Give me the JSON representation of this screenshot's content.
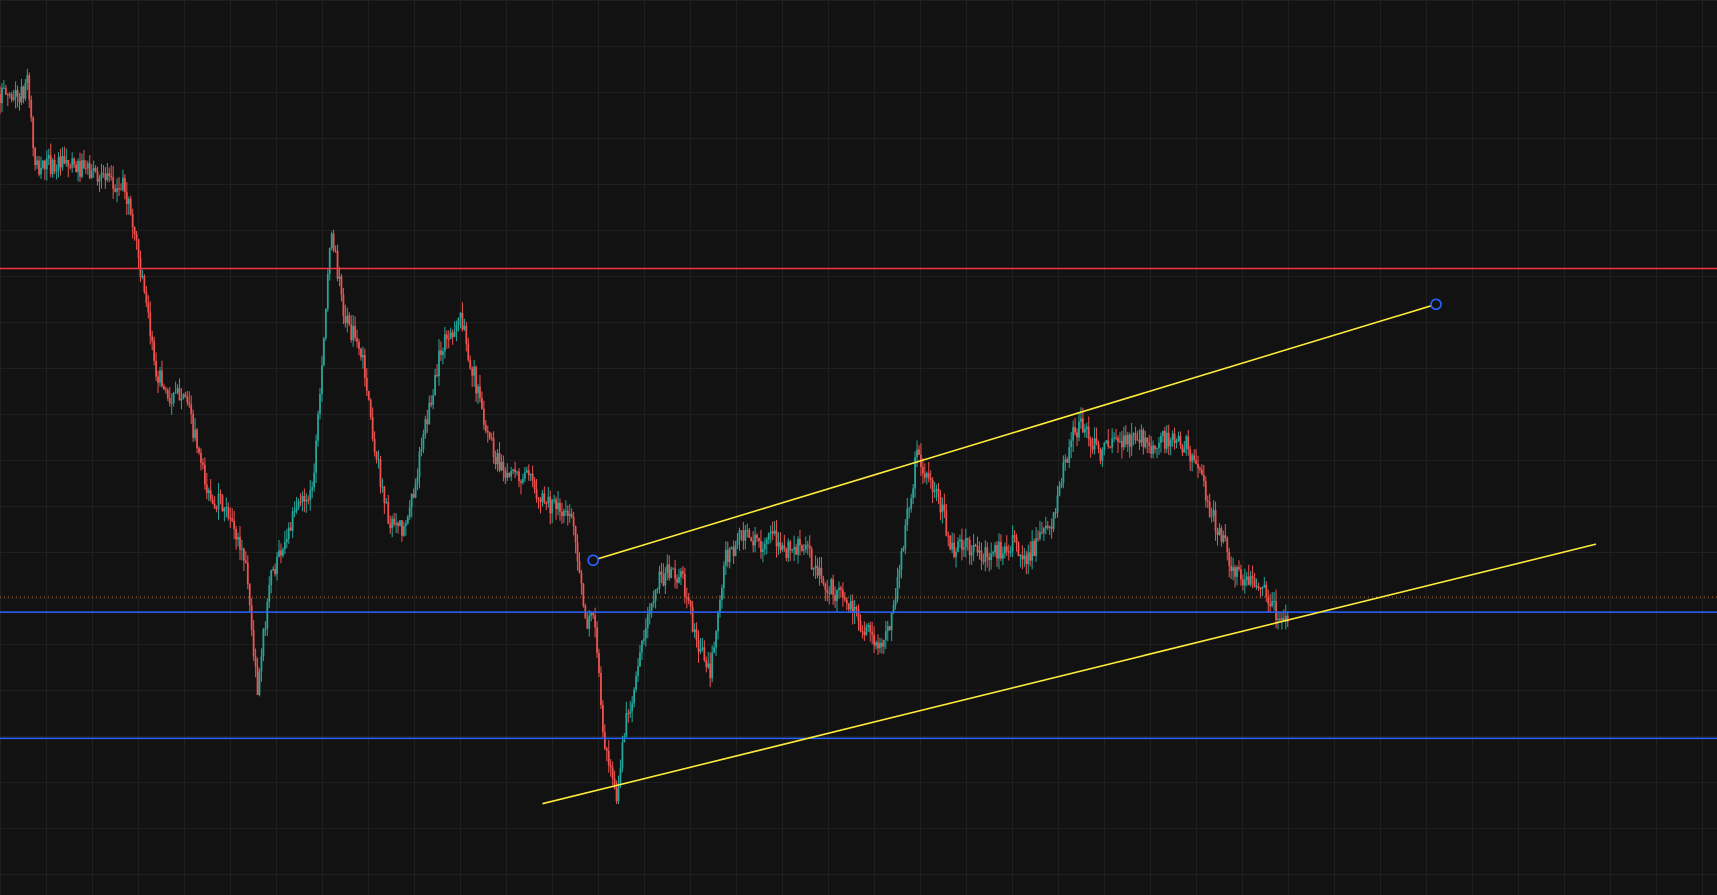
{
  "colors": {
    "background": "#121212",
    "grid": "#1f1f1f",
    "bull": "#26a69a",
    "bear": "#ef5350",
    "resistance": "#f23645",
    "support": "#2962ff",
    "trendline": "#ffeb3b",
    "current_price": "#b2703a",
    "handle": "#2962ff"
  },
  "chart_data": {
    "type": "candlestick",
    "grid": true,
    "axes_visible": false,
    "ylim": [
      0,
      100
    ],
    "xlim": [
      0,
      440
    ],
    "price_path": [
      [
        0,
        89.5
      ],
      [
        6,
        89.3
      ],
      [
        7,
        91.8
      ],
      [
        9,
        81
      ],
      [
        12,
        81.7
      ],
      [
        16,
        81.5
      ],
      [
        22,
        81
      ],
      [
        26,
        80.5
      ],
      [
        29,
        79
      ],
      [
        32,
        79.1
      ],
      [
        35,
        73
      ],
      [
        37,
        66.7
      ],
      [
        40,
        58.7
      ],
      [
        44,
        55
      ],
      [
        47,
        56.7
      ],
      [
        50,
        51
      ],
      [
        53,
        45
      ],
      [
        57,
        43.5
      ],
      [
        60,
        40.8
      ],
      [
        63,
        37.3
      ],
      [
        66,
        22.3
      ],
      [
        69,
        35
      ],
      [
        72,
        38.7
      ],
      [
        77,
        44
      ],
      [
        80,
        45.3
      ],
      [
        85,
        74.3
      ],
      [
        88,
        65
      ],
      [
        93,
        60
      ],
      [
        96,
        50
      ],
      [
        100,
        41
      ],
      [
        104,
        40.8
      ],
      [
        109,
        52.1
      ],
      [
        113,
        61.1
      ],
      [
        118,
        64.7
      ],
      [
        123,
        55
      ],
      [
        127,
        49
      ],
      [
        131,
        46.7
      ],
      [
        135,
        46.5
      ],
      [
        139,
        44.6
      ],
      [
        143,
        42.8
      ],
      [
        147,
        42
      ],
      [
        150,
        30
      ],
      [
        152,
        32
      ],
      [
        155,
        16
      ],
      [
        158,
        10.4
      ],
      [
        160,
        18.7
      ],
      [
        163,
        24.4
      ],
      [
        168,
        35
      ],
      [
        172,
        36.2
      ],
      [
        175,
        35.1
      ],
      [
        178,
        29.2
      ],
      [
        182,
        24.5
      ],
      [
        186,
        37.6
      ],
      [
        190,
        40.1
      ],
      [
        194,
        39.3
      ],
      [
        198,
        39.8
      ],
      [
        202,
        38.5
      ],
      [
        206,
        39.1
      ],
      [
        209,
        36.2
      ],
      [
        212,
        34.5
      ],
      [
        216,
        33.3
      ],
      [
        219,
        31.2
      ],
      [
        223,
        29.3
      ],
      [
        226,
        27.1
      ],
      [
        229,
        32.4
      ],
      [
        232,
        41.1
      ],
      [
        235,
        49.2
      ],
      [
        238,
        46
      ],
      [
        241,
        43.5
      ],
      [
        244,
        38.7
      ],
      [
        248,
        39
      ],
      [
        252,
        37.8
      ],
      [
        256,
        38.5
      ],
      [
        259,
        39.5
      ],
      [
        262,
        37.6
      ],
      [
        266,
        39.2
      ],
      [
        270,
        42
      ],
      [
        272,
        46.5
      ],
      [
        275,
        51.2
      ],
      [
        277,
        52.7
      ],
      [
        279,
        51.3
      ],
      [
        282,
        49.5
      ],
      [
        286,
        50.5
      ],
      [
        290,
        50.8
      ],
      [
        294,
        51.2
      ],
      [
        296,
        49.5
      ],
      [
        298,
        50.8
      ],
      [
        302,
        50.4
      ],
      [
        304,
        50.3
      ],
      [
        306,
        48.7
      ],
      [
        308,
        45.9
      ],
      [
        311,
        42.1
      ],
      [
        314,
        39
      ],
      [
        316,
        36.3
      ],
      [
        318,
        35.2
      ],
      [
        320,
        35.1
      ],
      [
        323,
        35.2
      ],
      [
        325,
        33.5
      ],
      [
        327,
        31.2
      ],
      [
        330,
        31
      ]
    ],
    "horizontal_levels": [
      {
        "role": "resistance",
        "value": 70
      },
      {
        "role": "support",
        "value": 31.6
      },
      {
        "role": "support",
        "value": 17.5
      }
    ],
    "current_price": 33.3,
    "trendlines": [
      {
        "role": "upper-channel",
        "x1": 152,
        "y1": 37.4,
        "x2": 368,
        "y2": 66,
        "handles": true
      },
      {
        "role": "lower-channel",
        "x1": 139,
        "y1": 10.2,
        "x2": 409,
        "y2": 39.2,
        "handles": false
      }
    ]
  }
}
